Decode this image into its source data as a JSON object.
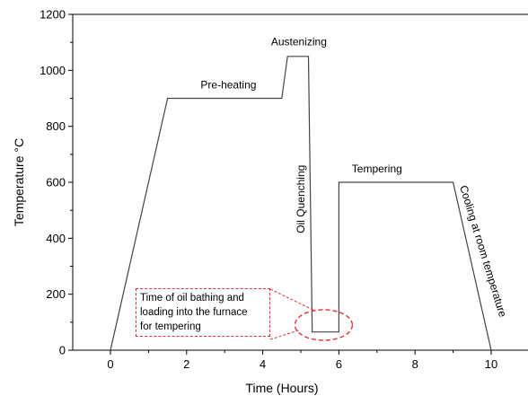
{
  "chart_data": {
    "type": "line",
    "xlabel": "Time (Hours)",
    "ylabel": "Temperature °C",
    "xlim": [
      -1,
      11
    ],
    "ylim": [
      0,
      1200
    ],
    "xticks": [
      0,
      2,
      4,
      6,
      8,
      10
    ],
    "yticks": [
      0,
      200,
      400,
      600,
      800,
      1000,
      1200
    ],
    "grid": false,
    "series": [
      {
        "x": [
          0,
          1.5,
          4.5,
          4.65,
          5.2,
          5.3,
          6.0,
          6.0,
          9.0,
          10.0
        ],
        "y": [
          0,
          900,
          900,
          1050,
          1050,
          65,
          65,
          600,
          600,
          0
        ]
      }
    ],
    "annotations": [
      {
        "text": "Pre-heating",
        "x": 3.1,
        "y": 935,
        "rotation": 0
      },
      {
        "text": "Austenizing",
        "x": 4.95,
        "y": 1090,
        "rotation": 0
      },
      {
        "text": "Oil Quenching",
        "x": 5.1,
        "y": 540,
        "rotation": -90
      },
      {
        "text": "Tempering",
        "x": 7.0,
        "y": 635,
        "rotation": 0
      },
      {
        "text": "Cooling at room temperature",
        "x": 9.7,
        "y": 350,
        "rotation": 73
      }
    ],
    "callout": {
      "lines": [
        "Time of oil bathing and",
        "loading into the furnace",
        "for tempering"
      ],
      "ellipse_center": {
        "x": 5.6,
        "y": 90
      },
      "color": "#e03030"
    },
    "line_color": "#444444"
  }
}
